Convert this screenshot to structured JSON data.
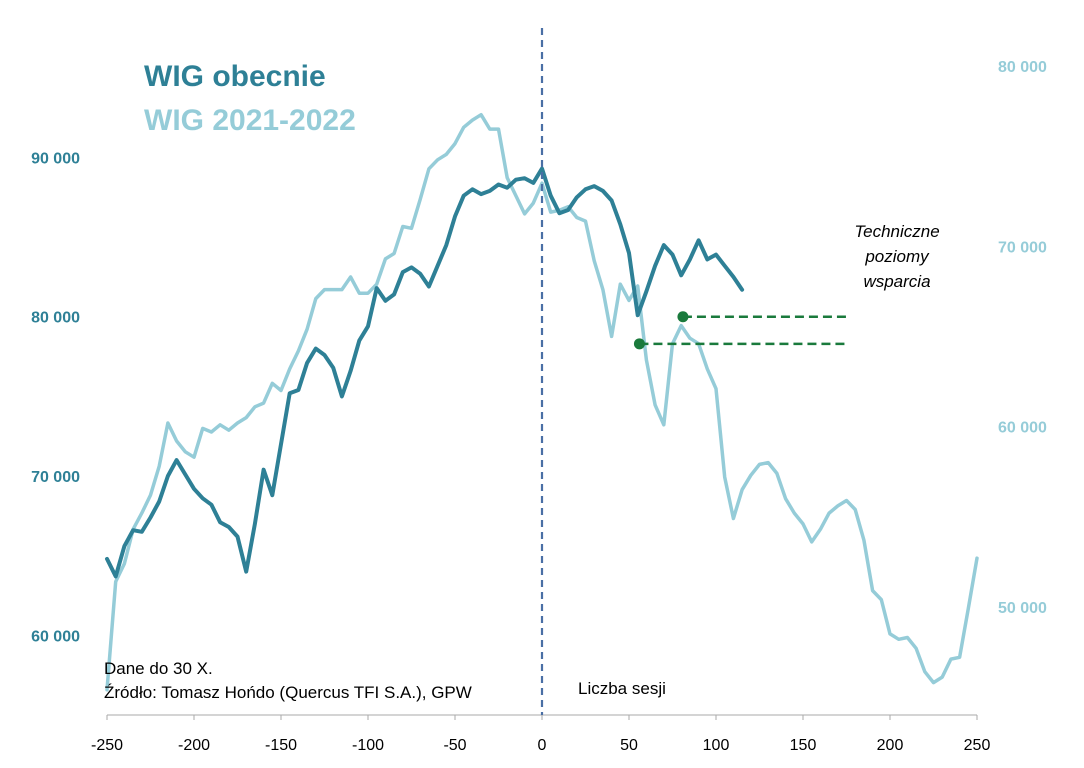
{
  "chart_data": {
    "type": "line",
    "legend": [
      "WIG obecnie",
      "WIG 2021-2022"
    ],
    "colors": {
      "current": "#2e8096",
      "past": "#95ccd8",
      "divider": "#4a6fa5",
      "support": "#1a7a3c",
      "axis": "#aaaaaa"
    },
    "xlabel": "Liczba sesji",
    "x_ticks": [
      -250,
      -200,
      -150,
      -100,
      -50,
      0,
      50,
      100,
      150,
      200,
      250
    ],
    "xlim": [
      -250,
      250
    ],
    "y_left": {
      "ticks": [
        60000,
        70000,
        80000,
        90000
      ],
      "labels": [
        "60 000",
        "70 000",
        "80 000",
        "90 000"
      ],
      "range": [
        55000,
        98000
      ]
    },
    "y_right": {
      "ticks": [
        50000,
        60000,
        70000,
        80000
      ],
      "labels": [
        "50 000",
        "60 000",
        "70 000",
        "80 000"
      ],
      "range": [
        44000,
        82000
      ]
    },
    "series": [
      {
        "name": "WIG obecnie",
        "axis": "left",
        "x": [
          -250,
          -245,
          -240,
          -235,
          -230,
          -225,
          -220,
          -215,
          -210,
          -205,
          -200,
          -195,
          -190,
          -185,
          -180,
          -175,
          -170,
          -165,
          -160,
          -155,
          -150,
          -145,
          -140,
          -135,
          -130,
          -125,
          -120,
          -115,
          -110,
          -105,
          -100,
          -95,
          -90,
          -85,
          -80,
          -75,
          -70,
          -65,
          -60,
          -55,
          -50,
          -45,
          -40,
          -35,
          -30,
          -25,
          -20,
          -15,
          -10,
          -5,
          0,
          5,
          10,
          15,
          20,
          25,
          30,
          35,
          40,
          45,
          50,
          55,
          60,
          65,
          70,
          75,
          80,
          85,
          90,
          95,
          100,
          105,
          110,
          115
        ],
        "values": [
          64800,
          63700,
          65600,
          66600,
          66500,
          67400,
          68400,
          70000,
          71000,
          70100,
          69200,
          68600,
          68200,
          67100,
          66800,
          66200,
          64000,
          67000,
          70400,
          68800,
          72000,
          75200,
          75400,
          77100,
          78000,
          77600,
          76800,
          75000,
          76600,
          78500,
          79400,
          81800,
          81000,
          81400,
          82800,
          83100,
          82700,
          81900,
          83200,
          84500,
          86300,
          87600,
          88000,
          87700,
          87900,
          88300,
          88100,
          88600,
          88700,
          88400,
          89300,
          87600,
          86500,
          86700,
          87500,
          88000,
          88200,
          87900,
          87300,
          85800,
          84000,
          80100,
          81600,
          83200,
          84500,
          83900,
          82600,
          83600,
          84800,
          83600,
          83900,
          83200,
          82500,
          81700
        ]
      },
      {
        "name": "WIG 2021-2022",
        "axis": "right",
        "x": [
          -250,
          -245,
          -240,
          -235,
          -230,
          -225,
          -220,
          -215,
          -210,
          -205,
          -200,
          -195,
          -190,
          -185,
          -180,
          -175,
          -170,
          -165,
          -160,
          -155,
          -150,
          -145,
          -140,
          -135,
          -130,
          -125,
          -120,
          -115,
          -110,
          -105,
          -100,
          -95,
          -90,
          -85,
          -80,
          -75,
          -70,
          -65,
          -60,
          -55,
          -50,
          -45,
          -40,
          -35,
          -30,
          -25,
          -20,
          -15,
          -10,
          -5,
          0,
          5,
          10,
          15,
          20,
          25,
          30,
          35,
          40,
          45,
          50,
          55,
          60,
          65,
          70,
          75,
          80,
          85,
          90,
          95,
          100,
          105,
          110,
          115,
          120,
          125,
          130,
          135,
          140,
          145,
          150,
          155,
          160,
          165,
          170,
          175,
          180,
          185,
          190,
          195,
          200,
          205,
          210,
          215,
          220,
          225,
          230,
          235,
          240,
          245,
          250
        ],
        "values": [
          45400,
          51400,
          52400,
          54300,
          55200,
          56200,
          57800,
          60200,
          59200,
          58600,
          58300,
          59900,
          59700,
          60100,
          59800,
          60200,
          60500,
          61100,
          61300,
          62400,
          62000,
          63200,
          64200,
          65400,
          67100,
          67600,
          67600,
          67600,
          68300,
          67400,
          67400,
          67900,
          69300,
          69600,
          71100,
          71000,
          72600,
          74300,
          74800,
          75100,
          75700,
          76600,
          77000,
          77300,
          76500,
          76500,
          73800,
          72800,
          71800,
          72400,
          73500,
          71900,
          72000,
          72200,
          71600,
          71400,
          69200,
          67600,
          65000,
          67900,
          67000,
          67800,
          63700,
          61200,
          60100,
          64600,
          65600,
          64900,
          64600,
          63200,
          62100,
          57200,
          54900,
          56500,
          57300,
          57900,
          58000,
          57400,
          56000,
          55200,
          54600,
          53600,
          54300,
          55200,
          55600,
          55900,
          55400,
          53700,
          50900,
          50400,
          48500,
          48200,
          48300,
          47700,
          46400,
          45800,
          46100,
          47100,
          47200,
          49900,
          52700
        ]
      }
    ],
    "support_levels": [
      {
        "x_from": 81,
        "x_to": 175,
        "value": 80000
      },
      {
        "x_from": 56,
        "x_to": 175,
        "value": 78300
      }
    ],
    "annotations": {
      "source_line1": "Dane do 30 X.",
      "source_line2": "Źródło: Tomasz Hońdo (Quercus TFI S.A.), GPW",
      "support_line1": "Techniczne",
      "support_line2": "poziomy",
      "support_line3": "wsparcia"
    }
  }
}
